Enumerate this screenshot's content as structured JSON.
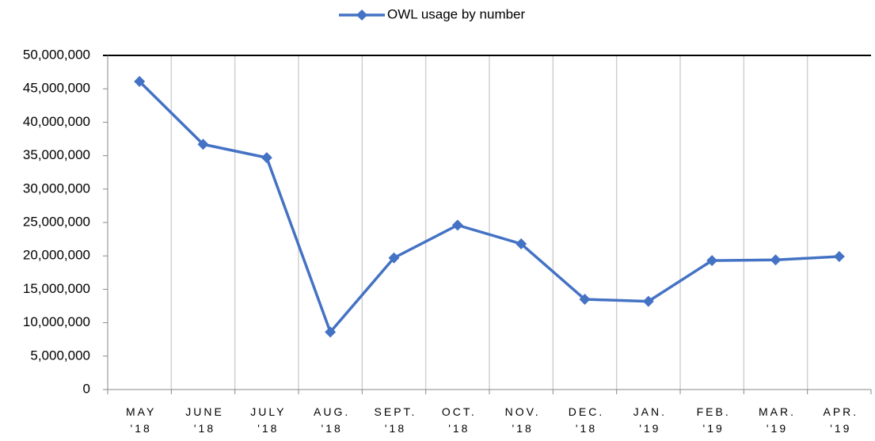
{
  "chart_data": {
    "type": "line",
    "categories": [
      "MAY\n'18",
      "JUNE\n'18",
      "JULY\n'18",
      "AUG.\n'18",
      "SEPT.\n'18",
      "OCT.\n'18",
      "NOV.\n'18",
      "DEC.\n'18",
      "JAN.\n'19",
      "FEB.\n'19",
      "MAR.\n'19",
      "APR.\n'19"
    ],
    "series": [
      {
        "name": "OWL usage by number",
        "color": "#4472c4",
        "values": [
          46100000,
          36700000,
          34700000,
          8600000,
          19700000,
          24600000,
          21800000,
          13500000,
          13200000,
          19300000,
          19400000,
          19900000
        ]
      }
    ],
    "ylim": [
      0,
      50000000
    ],
    "yticks": [
      0,
      {
        "value": 5000000,
        "label": "5,000,000"
      },
      {
        "value": 10000000,
        "label": "10,000,000"
      },
      {
        "value": 15000000,
        "label": "15,000,000"
      },
      {
        "value": 20000000,
        "label": "20,000,000"
      },
      {
        "value": 25000000,
        "label": "25,000,000"
      },
      {
        "value": 30000000,
        "label": "30,000,000"
      },
      {
        "value": 35000000,
        "label": "35,000,000"
      },
      {
        "value": 40000000,
        "label": "40,000,000"
      },
      {
        "value": 45000000,
        "label": "45,000,000"
      },
      {
        "value": 50000000,
        "label": "50,000,000"
      }
    ],
    "grid": true,
    "legend": "top"
  }
}
